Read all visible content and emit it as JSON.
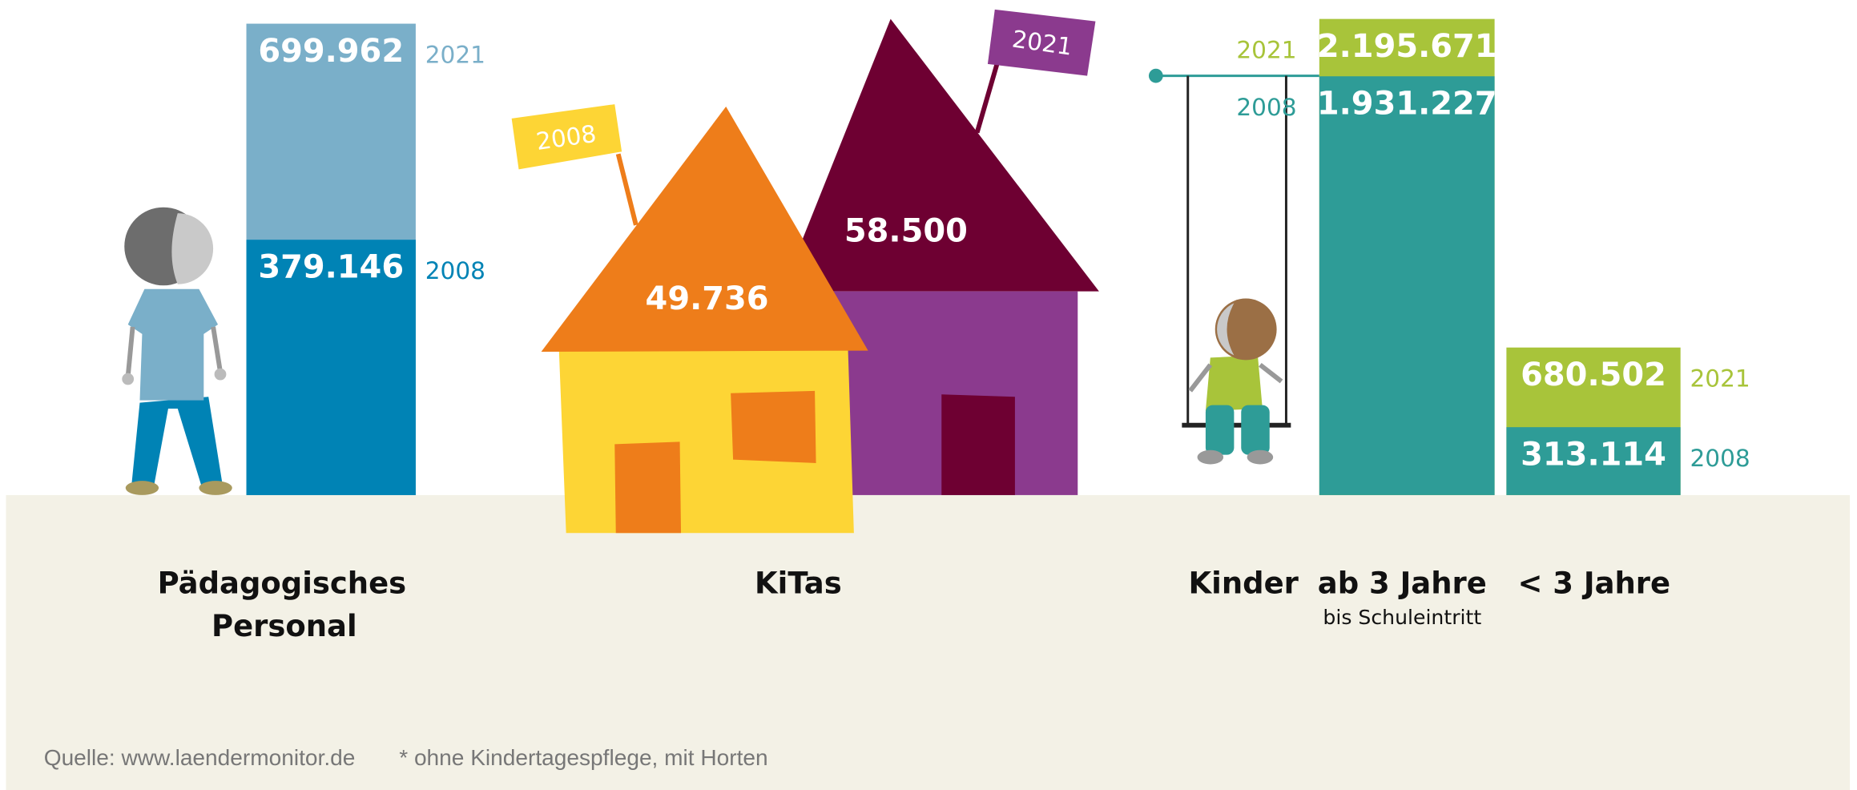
{
  "personal": {
    "title": [
      "Pädagogisches",
      "Personal"
    ],
    "bars": [
      {
        "year": "2021",
        "value": 699962,
        "label": "699.962",
        "color": "#7aafc9"
      },
      {
        "year": "2008",
        "value": 379146,
        "label": "379.146",
        "color": "#0083b5"
      }
    ]
  },
  "kitas": {
    "title": "KiTas",
    "houses": [
      {
        "year": "2021",
        "label": "58.500"
      },
      {
        "year": "2008",
        "label": "49.736"
      }
    ]
  },
  "kinder": {
    "title": "Kinder",
    "groups": [
      {
        "title": "ab 3 Jahre",
        "subtitle": "bis Schuleintritt",
        "bars": [
          {
            "year": "2021",
            "value": 2195671,
            "label": "2.195.671",
            "color": "#a8c43a"
          },
          {
            "year": "2008",
            "value": 1931227,
            "label": "1.931.227",
            "color": "#2e9c97"
          }
        ]
      },
      {
        "title": "< 3 Jahre",
        "bars": [
          {
            "year": "2021",
            "value": 680502,
            "label": "680.502",
            "color": "#a8c43a"
          },
          {
            "year": "2008",
            "value": 313114,
            "label": "313.114",
            "color": "#2e9c97"
          }
        ]
      }
    ]
  },
  "footer": {
    "source": "Quelle: www.laendermonitor.de",
    "note": "* ohne Kindertagespflege, mit Horten"
  }
}
